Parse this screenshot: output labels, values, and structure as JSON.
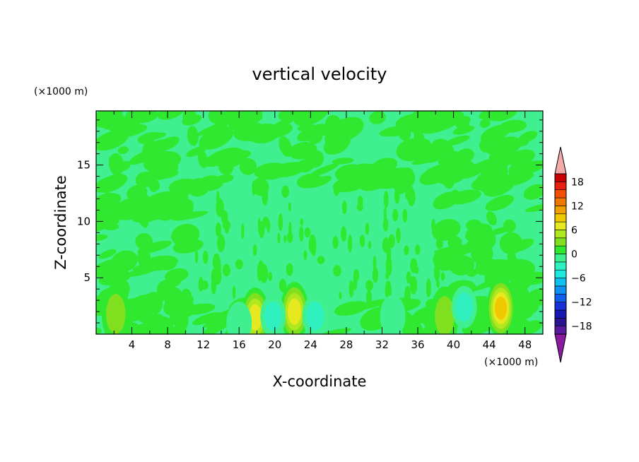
{
  "chart_data": {
    "type": "heatmap",
    "title": "vertical velocity",
    "xlabel": "X-coordinate",
    "ylabel": "Z-coordinate",
    "x_unit": "(×1000 m)",
    "y_unit": "(×1000 m)",
    "xlim": [
      0,
      50
    ],
    "ylim": [
      0,
      19.8
    ],
    "x_ticks": [
      4,
      8,
      12,
      16,
      20,
      24,
      28,
      32,
      36,
      40,
      44,
      48
    ],
    "y_ticks": [
      5,
      10,
      15
    ],
    "grid": false,
    "colorbar": {
      "levels": [
        -20,
        -18,
        -16,
        -14,
        -12,
        -10,
        -8,
        -6,
        -4,
        -2,
        0,
        2,
        4,
        6,
        8,
        10,
        12,
        14,
        16,
        18,
        20
      ],
      "tick_values": [
        18,
        12,
        6,
        0,
        -6,
        -12,
        -18
      ],
      "colors": [
        "#5a1aa0",
        "#2a1490",
        "#1818b0",
        "#1830d8",
        "#1060f0",
        "#1090f0",
        "#10c0f0",
        "#20e8e0",
        "#30f0c0",
        "#40f090",
        "#30e830",
        "#80e020",
        "#b0e820",
        "#e8e820",
        "#f0c800",
        "#f0a000",
        "#f07800",
        "#f05000",
        "#e82010",
        "#c80000"
      ],
      "over_color": "#f4aaa8",
      "under_color": "#8a1aa0"
    },
    "features": [
      {
        "x": 45.3,
        "z": 2.3,
        "peak": 9
      },
      {
        "x": 22.2,
        "z": 2.0,
        "peak": 8
      },
      {
        "x": 17.8,
        "z": 1.5,
        "peak": 7
      },
      {
        "x": 39.0,
        "z": 1.6,
        "peak": 4
      },
      {
        "x": 2.2,
        "z": 1.8,
        "peak": 3
      },
      {
        "x": 41.2,
        "z": 2.4,
        "peak": -4
      },
      {
        "x": 19.8,
        "z": 1.6,
        "peak": -3
      },
      {
        "x": 24.5,
        "z": 1.6,
        "peak": -3
      },
      {
        "x": 33.2,
        "z": 1.6,
        "peak": -2
      },
      {
        "x": 16.0,
        "z": 1.0,
        "peak": -2
      }
    ]
  }
}
